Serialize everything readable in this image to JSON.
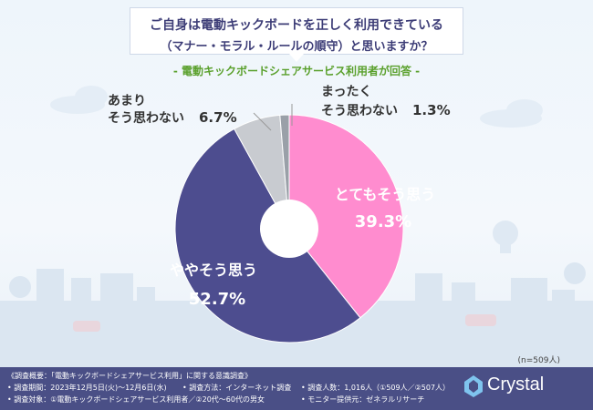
{
  "header": {
    "title_line1": "ご自身は電動キックボードを正しく利用できている",
    "title_line2": "（マナー・モラル・ルールの順守）と思いますか？",
    "subtitle": "- 電動キックボードシェアサービス利用者が回答 -"
  },
  "chart_data": {
    "type": "pie",
    "title": "ご自身は電動キックボードを正しく利用できている（マナー・モラル・ルールの順守）と思いますか？",
    "slices": [
      {
        "label": "とてもそう思う",
        "value": 39.3,
        "display": "39.3%",
        "color": "#ff8ccf"
      },
      {
        "label": "ややそう思う",
        "value": 52.7,
        "display": "52.7%",
        "color": "#4d4d8f"
      },
      {
        "label": "あまりそう思わない",
        "value": 6.7,
        "display": "6.7%",
        "color": "#c8cbd0"
      },
      {
        "label": "まったくそう思わない",
        "value": 1.3,
        "display": "1.3%",
        "color": "#9aa0a8"
      }
    ],
    "labels": {
      "slice0_name": "とてもそう思う",
      "slice0_value": "39.3%",
      "slice1_name": "ややそう思う",
      "slice1_value": "52.7%",
      "slice2_name_l1": "あまり",
      "slice2_name_l2": "そう思わない",
      "slice2_value": "6.7%",
      "slice3_name_l1": "まったく",
      "slice3_name_l2": "そう思わない",
      "slice3_value": "1.3%"
    }
  },
  "n_label": "(n=509人)",
  "footer": {
    "row1": "《調査概要：「電動キックボードシェアサービス利用」に関する意識調査》",
    "row2a": "• 調査期間：2023年12月5日(火)〜12月6日(水)",
    "row2b": "• 調査方法：インターネット調査",
    "row2c": "• 調査人数：1,016人（①509人／②507人）",
    "row3a": "• 調査対象：①電動キックボードシェアサービス利用者／②20代〜60代の男女",
    "row3b": "• モニター提供元：ゼネラルリサーチ",
    "brand": "Crystal"
  }
}
